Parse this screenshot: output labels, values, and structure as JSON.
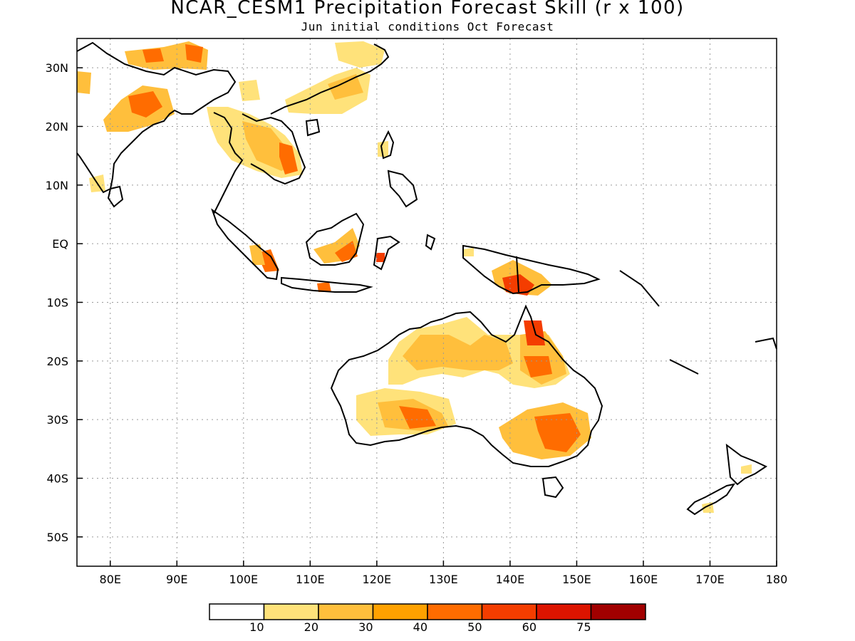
{
  "title": "NCAR_CESM1 Precipitation Forecast Skill (r x 100)",
  "subtitle": "Jun initial conditions  Oct Forecast",
  "map": {
    "lon_range": [
      75,
      180
    ],
    "lat_range": [
      -55,
      35
    ],
    "lat_ticks": [
      {
        "value": 30,
        "label": "30N"
      },
      {
        "value": 20,
        "label": "20N"
      },
      {
        "value": 10,
        "label": "10N"
      },
      {
        "value": 0,
        "label": "EQ"
      },
      {
        "value": -10,
        "label": "10S"
      },
      {
        "value": -20,
        "label": "20S"
      },
      {
        "value": -30,
        "label": "30S"
      },
      {
        "value": -40,
        "label": "40S"
      },
      {
        "value": -50,
        "label": "50S"
      }
    ],
    "lon_ticks": [
      {
        "value": 80,
        "label": "80E"
      },
      {
        "value": 90,
        "label": "90E"
      },
      {
        "value": 100,
        "label": "100E"
      },
      {
        "value": 110,
        "label": "110E"
      },
      {
        "value": 120,
        "label": "120E"
      },
      {
        "value": 130,
        "label": "130E"
      },
      {
        "value": 140,
        "label": "140E"
      },
      {
        "value": 150,
        "label": "150E"
      },
      {
        "value": 160,
        "label": "160E"
      },
      {
        "value": 170,
        "label": "170E"
      },
      {
        "value": 180,
        "label": "180"
      }
    ],
    "gridlines": true
  },
  "colorbar": {
    "colors": [
      "#ffffff",
      "#ffe27a",
      "#ffbf3c",
      "#ffa100",
      "#ff6c00",
      "#f43d00",
      "#dc1400",
      "#a10000"
    ],
    "labels": [
      "10",
      "20",
      "30",
      "40",
      "50",
      "60",
      "75"
    ]
  }
}
